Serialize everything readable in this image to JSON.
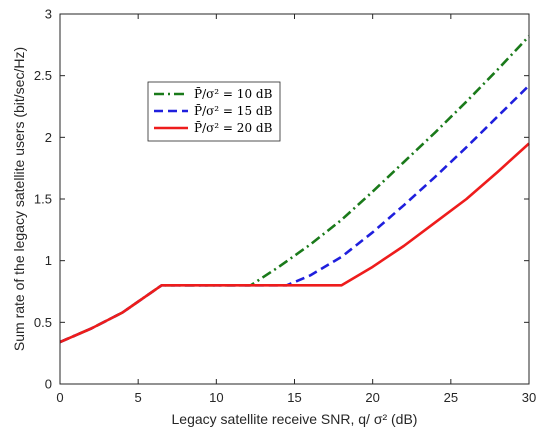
{
  "chart_data": {
    "type": "line",
    "xlabel": "Legacy satellite receive SNR, q/ σ² (dB)",
    "ylabel": "Sum rate of the legacy satellite users (bit/sec/Hz)",
    "xlim": [
      0,
      30
    ],
    "ylim": [
      0,
      3
    ],
    "xticks": [
      "0",
      "5",
      "10",
      "15",
      "20",
      "25",
      "30"
    ],
    "yticks": [
      "0",
      "0.5",
      "1",
      "1.5",
      "2",
      "2.5",
      "3"
    ],
    "grid": false,
    "legend_position": "upper-left",
    "series": [
      {
        "name": "P̄/σ² = 10 dB",
        "color": "#1a7a1a",
        "dash": "dashdot",
        "x": [
          0,
          2,
          4,
          6.5,
          12.2,
          14,
          16,
          18,
          20,
          22,
          24,
          26,
          28,
          30
        ],
        "y": [
          0.34,
          0.45,
          0.58,
          0.8,
          0.8,
          0.95,
          1.13,
          1.33,
          1.56,
          1.8,
          2.04,
          2.29,
          2.55,
          2.82
        ]
      },
      {
        "name": "P̄/σ² = 15 dB",
        "color": "#1f1fdd",
        "dash": "dashed",
        "x": [
          0,
          2,
          4,
          6.5,
          14.5,
          16,
          18,
          20,
          22,
          24,
          26,
          28,
          30
        ],
        "y": [
          0.34,
          0.45,
          0.58,
          0.8,
          0.8,
          0.88,
          1.03,
          1.23,
          1.45,
          1.68,
          1.92,
          2.17,
          2.42
        ]
      },
      {
        "name": "P̄/σ² = 20 dB",
        "color": "#ee1c1c",
        "dash": "solid",
        "x": [
          0,
          2,
          4,
          6.5,
          18,
          20,
          22,
          24,
          26,
          28,
          30
        ],
        "y": [
          0.34,
          0.45,
          0.58,
          0.8,
          0.8,
          0.95,
          1.12,
          1.31,
          1.5,
          1.72,
          1.95
        ]
      }
    ]
  }
}
